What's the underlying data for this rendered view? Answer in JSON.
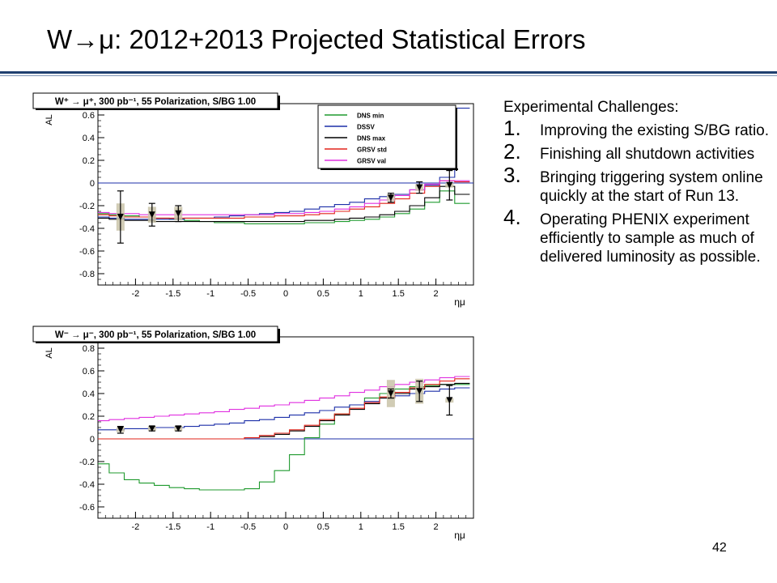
{
  "slide": {
    "title": "W→μ: 2012+2013 Projected Statistical Errors",
    "page_number": "42"
  },
  "challenges": {
    "heading": "Experimental Challenges:",
    "items": [
      {
        "num": "1.",
        "text": "Improving the existing S/BG ratio."
      },
      {
        "num": "2.",
        "text": "Finishing all shutdown activities"
      },
      {
        "num": "3.",
        "text": "Bringing triggering system online quickly at the start of Run 13."
      },
      {
        "num": "4.",
        "text": "Operating PHENIX experiment efficiently to sample as much of delivered luminosity as possible."
      }
    ]
  },
  "chart_data": [
    {
      "type": "line",
      "title": "W⁺ → μ⁺,  300 pb⁻¹, 55 Polarization, S/BG 1.00",
      "xlabel": "ημ",
      "ylabel": "AL",
      "xlim": [
        -2.5,
        2.5
      ],
      "ylim": [
        -0.9,
        0.7
      ],
      "xticks": [
        "-2",
        "-1.5",
        "-1",
        "-0.5",
        "0",
        "0.5",
        "1",
        "1.5",
        "2"
      ],
      "xtick_values": [
        -2,
        -1.5,
        -1,
        -0.5,
        0,
        0.5,
        1,
        1.5,
        2
      ],
      "yticks": [
        "-0.8",
        "-0.6",
        "-0.4",
        "-0.2",
        "0",
        "0.2",
        "0.4",
        "0.6"
      ],
      "ytick_values": [
        -0.8,
        -0.6,
        -0.4,
        -0.2,
        0,
        0.2,
        0.4,
        0.6
      ],
      "legend_position": "top-right",
      "x": [
        -2.45,
        -2.25,
        -2.05,
        -1.85,
        -1.65,
        -1.45,
        -1.25,
        -1.05,
        -0.85,
        -0.65,
        -0.45,
        -0.25,
        -0.05,
        0.15,
        0.35,
        0.55,
        0.75,
        0.95,
        1.15,
        1.35,
        1.55,
        1.75,
        1.95,
        2.15,
        2.35
      ],
      "series": [
        {
          "name": "DNS min",
          "color": "#1f9a2e",
          "values": [
            -0.27,
            -0.28,
            -0.29,
            -0.3,
            -0.31,
            -0.32,
            -0.33,
            -0.34,
            -0.35,
            -0.35,
            -0.36,
            -0.36,
            -0.36,
            -0.36,
            -0.35,
            -0.35,
            -0.34,
            -0.33,
            -0.32,
            -0.3,
            -0.27,
            -0.23,
            -0.17,
            -0.07,
            -0.18
          ]
        },
        {
          "name": "DSSV",
          "color": "#1c2fa8",
          "values": [
            -0.3,
            -0.31,
            -0.32,
            -0.32,
            -0.32,
            -0.32,
            -0.31,
            -0.31,
            -0.3,
            -0.29,
            -0.28,
            -0.27,
            -0.26,
            -0.25,
            -0.23,
            -0.21,
            -0.19,
            -0.17,
            -0.14,
            -0.12,
            -0.1,
            -0.06,
            -0.02,
            0.05,
            0.66
          ]
        },
        {
          "name": "DNS max",
          "color": "#000000",
          "values": [
            -0.31,
            -0.32,
            -0.33,
            -0.33,
            -0.34,
            -0.34,
            -0.34,
            -0.34,
            -0.34,
            -0.34,
            -0.34,
            -0.34,
            -0.34,
            -0.34,
            -0.33,
            -0.33,
            -0.32,
            -0.31,
            -0.3,
            -0.28,
            -0.25,
            -0.2,
            -0.13,
            -0.03,
            -0.1
          ]
        },
        {
          "name": "GRSV std",
          "color": "#e2231a",
          "values": [
            -0.28,
            -0.29,
            -0.3,
            -0.3,
            -0.31,
            -0.31,
            -0.31,
            -0.31,
            -0.31,
            -0.31,
            -0.3,
            -0.3,
            -0.29,
            -0.29,
            -0.28,
            -0.27,
            -0.25,
            -0.23,
            -0.21,
            -0.18,
            -0.14,
            -0.09,
            -0.03,
            0.02,
            0.01
          ]
        },
        {
          "name": "GRSV val",
          "color": "#e030e0",
          "values": [
            -0.26,
            -0.27,
            -0.27,
            -0.28,
            -0.28,
            -0.28,
            -0.28,
            -0.28,
            -0.28,
            -0.28,
            -0.28,
            -0.28,
            -0.27,
            -0.27,
            -0.26,
            -0.25,
            -0.23,
            -0.21,
            -0.18,
            -0.15,
            -0.11,
            -0.06,
            -0.01,
            0.02,
            0.02
          ]
        }
      ],
      "points": [
        {
          "x": -2.2,
          "y": -0.3,
          "err": 0.23,
          "sys": 0.12
        },
        {
          "x": -1.78,
          "y": -0.28,
          "err": 0.1,
          "sys": 0.07
        },
        {
          "x": -1.43,
          "y": -0.27,
          "err": 0.07,
          "sys": 0.06
        },
        {
          "x": 1.4,
          "y": -0.13,
          "err": 0.04,
          "sys": 0.03
        },
        {
          "x": 1.78,
          "y": -0.04,
          "err": 0.05,
          "sys": 0.03
        },
        {
          "x": 2.18,
          "y": -0.02,
          "err": 0.13,
          "sys": 0.02
        }
      ]
    },
    {
      "type": "line",
      "title": "W⁻ → μ⁻,  300 pb⁻¹, 55 Polarization, S/BG 1.00",
      "xlabel": "ημ",
      "ylabel": "AL",
      "xlim": [
        -2.5,
        2.5
      ],
      "ylim": [
        -0.7,
        0.9
      ],
      "xticks": [
        "-2",
        "-1.5",
        "-1",
        "-0.5",
        "0",
        "0.5",
        "1",
        "1.5",
        "2"
      ],
      "xtick_values": [
        -2,
        -1.5,
        -1,
        -0.5,
        0,
        0.5,
        1,
        1.5,
        2
      ],
      "yticks": [
        "-0.6",
        "-0.4",
        "-0.2",
        "0",
        "0.2",
        "0.4",
        "0.6",
        "0.8"
      ],
      "ytick_values": [
        -0.6,
        -0.4,
        -0.2,
        0,
        0.2,
        0.4,
        0.6,
        0.8
      ],
      "x": [
        -2.45,
        -2.25,
        -2.05,
        -1.85,
        -1.65,
        -1.45,
        -1.25,
        -1.05,
        -0.85,
        -0.65,
        -0.45,
        -0.25,
        -0.05,
        0.15,
        0.35,
        0.55,
        0.75,
        0.95,
        1.15,
        1.35,
        1.55,
        1.75,
        1.95,
        2.15,
        2.35
      ],
      "series": [
        {
          "name": "DNS min",
          "color": "#1f9a2e",
          "values": [
            -0.22,
            -0.3,
            -0.36,
            -0.39,
            -0.41,
            -0.43,
            -0.44,
            -0.45,
            -0.45,
            -0.45,
            -0.44,
            -0.38,
            -0.28,
            -0.14,
            0.01,
            0.13,
            0.22,
            0.3,
            0.36,
            0.4,
            0.44,
            0.46,
            0.47,
            0.48,
            0.48
          ]
        },
        {
          "name": "DSSV",
          "color": "#1c2fa8",
          "values": [
            0.08,
            0.08,
            0.09,
            0.09,
            0.1,
            0.1,
            0.11,
            0.12,
            0.13,
            0.14,
            0.16,
            0.17,
            0.19,
            0.21,
            0.23,
            0.25,
            0.28,
            0.3,
            0.33,
            0.36,
            0.38,
            0.4,
            0.42,
            0.44,
            0.45
          ]
        },
        {
          "name": "DNS max",
          "color": "#000000",
          "values": [
            0.0,
            0.0,
            0.0,
            0.0,
            0.0,
            0.0,
            0.0,
            0.0,
            0.0,
            0.0,
            0.01,
            0.02,
            0.04,
            0.07,
            0.11,
            0.16,
            0.21,
            0.26,
            0.31,
            0.36,
            0.4,
            0.44,
            0.46,
            0.48,
            0.49
          ]
        },
        {
          "name": "GRSV std",
          "color": "#e2231a",
          "values": [
            0.0,
            0.0,
            0.0,
            0.0,
            0.0,
            0.0,
            0.0,
            0.0,
            0.0,
            0.0,
            0.01,
            0.03,
            0.05,
            0.08,
            0.12,
            0.17,
            0.22,
            0.27,
            0.32,
            0.37,
            0.41,
            0.45,
            0.48,
            0.51,
            0.53
          ]
        },
        {
          "name": "GRSV val",
          "color": "#e030e0",
          "values": [
            0.16,
            0.17,
            0.18,
            0.19,
            0.2,
            0.21,
            0.22,
            0.23,
            0.24,
            0.26,
            0.27,
            0.29,
            0.3,
            0.32,
            0.34,
            0.36,
            0.38,
            0.41,
            0.43,
            0.46,
            0.48,
            0.5,
            0.52,
            0.54,
            0.55
          ]
        }
      ],
      "points": [
        {
          "x": -2.2,
          "y": 0.08,
          "err": 0.03,
          "sys": 0.02
        },
        {
          "x": -1.78,
          "y": 0.09,
          "err": 0.02,
          "sys": 0.02
        },
        {
          "x": -1.43,
          "y": 0.09,
          "err": 0.02,
          "sys": 0.02
        },
        {
          "x": 1.4,
          "y": 0.4,
          "err": 0.04,
          "sys": 0.12
        },
        {
          "x": 1.78,
          "y": 0.42,
          "err": 0.09,
          "sys": 0.11
        },
        {
          "x": 2.18,
          "y": 0.34,
          "err": 0.13,
          "sys": 0.02
        }
      ]
    }
  ]
}
